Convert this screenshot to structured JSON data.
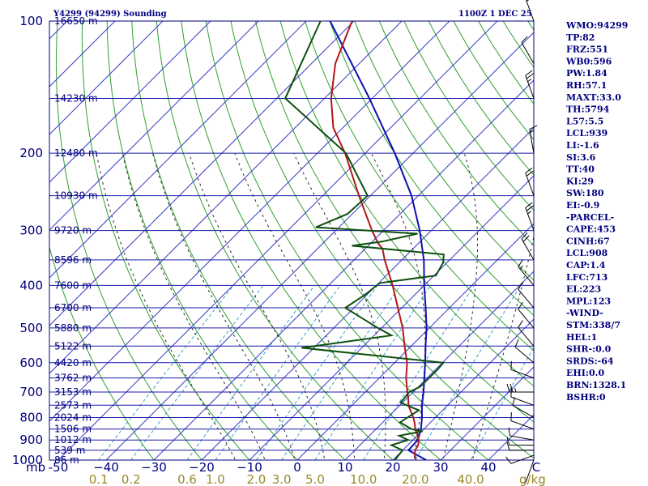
{
  "title": {
    "station": "Y4299 (94299) Sounding",
    "time": "1100Z  1 DEC 25"
  },
  "chart_data": {
    "type": "skew-t sounding",
    "pressure_levels": [
      100,
      150,
      200,
      250,
      300,
      350,
      400,
      450,
      500,
      550,
      600,
      650,
      700,
      750,
      800,
      850,
      900,
      950,
      1000
    ],
    "pressure_labels": [
      {
        "p": 100,
        "text": "100"
      },
      {
        "p": 200,
        "text": "200"
      },
      {
        "p": 300,
        "text": "300"
      },
      {
        "p": 400,
        "text": "400"
      },
      {
        "p": 500,
        "text": "500"
      },
      {
        "p": 600,
        "text": "600"
      },
      {
        "p": 700,
        "text": "700"
      },
      {
        "p": 800,
        "text": "800"
      },
      {
        "p": 900,
        "text": "900"
      },
      {
        "p": 1000,
        "text": "1000"
      }
    ],
    "pressure_unit": "mb",
    "height_labels": [
      {
        "p": 100,
        "text": "16650 m"
      },
      {
        "p": 150,
        "text": "14230 m"
      },
      {
        "p": 200,
        "text": "12480 m"
      },
      {
        "p": 250,
        "text": "10930 m"
      },
      {
        "p": 300,
        "text": "9720 m"
      },
      {
        "p": 350,
        "text": "8596 m"
      },
      {
        "p": 400,
        "text": "7600 m"
      },
      {
        "p": 450,
        "text": "6700 m"
      },
      {
        "p": 500,
        "text": "5880 m"
      },
      {
        "p": 550,
        "text": "5122 m"
      },
      {
        "p": 600,
        "text": "4420 m"
      },
      {
        "p": 650,
        "text": "3762 m"
      },
      {
        "p": 700,
        "text": "3153 m"
      },
      {
        "p": 750,
        "text": "2573 m"
      },
      {
        "p": 800,
        "text": "2024 m"
      },
      {
        "p": 850,
        "text": "1506 m"
      },
      {
        "p": 900,
        "text": "1012 m"
      },
      {
        "p": 950,
        "text": "539 m"
      },
      {
        "p": 1000,
        "text": "86 m"
      }
    ],
    "temperature_ticks": [
      {
        "t": -50,
        "text": "-50"
      },
      {
        "t": -40,
        "text": "−40"
      },
      {
        "t": -30,
        "text": "−30"
      },
      {
        "t": -20,
        "text": "−20"
      },
      {
        "t": -10,
        "text": "−10"
      },
      {
        "t": 0,
        "text": "0"
      },
      {
        "t": 10,
        "text": "10"
      },
      {
        "t": 20,
        "text": "20"
      },
      {
        "t": 30,
        "text": "30"
      },
      {
        "t": 40,
        "text": "40"
      },
      {
        "t": 50,
        "text": "C"
      }
    ],
    "mixing_ratio_labels": [
      {
        "t": 0.1,
        "text": "0.1"
      },
      {
        "t": 0.2,
        "text": "0.2"
      },
      {
        "t": 0.6,
        "text": "0.6"
      },
      {
        "t": 1.0,
        "text": "1.0"
      },
      {
        "t": 2.0,
        "text": "2.0"
      },
      {
        "t": 3.0,
        "text": "3.0"
      },
      {
        "t": 5.0,
        "text": "5.0"
      },
      {
        "t": 10.0,
        "text": "10.0"
      },
      {
        "t": 20.0,
        "text": "20.0"
      },
      {
        "t": 40.0,
        "text": "40.0"
      }
    ],
    "mixing_ratio_unit": "g/kg",
    "temperature_profile": [
      [
        1000,
        24.8
      ],
      [
        975,
        23.6
      ],
      [
        950,
        22.6
      ],
      [
        925,
        22.2
      ],
      [
        900,
        21.2
      ],
      [
        875,
        19.8
      ],
      [
        850,
        18.2
      ],
      [
        825,
        16.9
      ],
      [
        800,
        15.4
      ],
      [
        775,
        13.6
      ],
      [
        750,
        11.8
      ],
      [
        725,
        10.4
      ],
      [
        700,
        8.8
      ],
      [
        650,
        5.6
      ],
      [
        600,
        2.6
      ],
      [
        550,
        -1.4
      ],
      [
        500,
        -5.6
      ],
      [
        450,
        -10.8
      ],
      [
        400,
        -16.6
      ],
      [
        350,
        -23.6
      ],
      [
        330,
        -26.4
      ],
      [
        320,
        -28.6
      ],
      [
        300,
        -32.4
      ],
      [
        250,
        -42.4
      ],
      [
        200,
        -54.2
      ],
      [
        175,
        -62.0
      ],
      [
        150,
        -68.6
      ],
      [
        125,
        -75.0
      ],
      [
        100,
        -80.4
      ]
    ],
    "dewpoint_profile": [
      [
        1000,
        20.4
      ],
      [
        950,
        20.0
      ],
      [
        925,
        16.6
      ],
      [
        900,
        19.0
      ],
      [
        880,
        16.2
      ],
      [
        860,
        20.2
      ],
      [
        850,
        17.4
      ],
      [
        820,
        13.6
      ],
      [
        770,
        15.0
      ],
      [
        740,
        9.6
      ],
      [
        700,
        9.2
      ],
      [
        680,
        10.4
      ],
      [
        650,
        10.4
      ],
      [
        620,
        10.4
      ],
      [
        600,
        10.2
      ],
      [
        555,
        -22.6
      ],
      [
        520,
        -6.4
      ],
      [
        500,
        -10.8
      ],
      [
        450,
        -21.8
      ],
      [
        420,
        -20.4
      ],
      [
        395,
        -19.8
      ],
      [
        380,
        -9.6
      ],
      [
        355,
        -10.8
      ],
      [
        340,
        -12.4
      ],
      [
        325,
        -33.4
      ],
      [
        318,
        -28.0
      ],
      [
        305,
        -22.2
      ],
      [
        295,
        -44.8
      ],
      [
        275,
        -41.0
      ],
      [
        250,
        -40.6
      ],
      [
        200,
        -54.0
      ],
      [
        150,
        -78.2
      ],
      [
        100,
        -87.0
      ]
    ],
    "parcel_profile": [
      [
        1000,
        27.0
      ],
      [
        950,
        21.2
      ],
      [
        900,
        21.0
      ],
      [
        850,
        19.4
      ],
      [
        800,
        17.2
      ],
      [
        750,
        14.6
      ],
      [
        700,
        12.2
      ],
      [
        650,
        9.4
      ],
      [
        600,
        6.4
      ],
      [
        550,
        3.0
      ],
      [
        500,
        -0.6
      ],
      [
        450,
        -5.0
      ],
      [
        400,
        -10.0
      ],
      [
        350,
        -15.4
      ],
      [
        300,
        -22.4
      ],
      [
        250,
        -31.4
      ],
      [
        200,
        -43.8
      ],
      [
        150,
        -60.6
      ],
      [
        100,
        -85.0
      ]
    ],
    "wind_barbs": [
      {
        "p": 1000,
        "dir": 200,
        "spd": 5
      },
      {
        "p": 975,
        "dir": 250,
        "spd": 10
      },
      {
        "p": 950,
        "dir": 270,
        "spd": 10
      },
      {
        "p": 925,
        "dir": 270,
        "spd": 10
      },
      {
        "p": 900,
        "dir": 280,
        "spd": 10
      },
      {
        "p": 850,
        "dir": 290,
        "spd": 10
      },
      {
        "p": 800,
        "dir": 300,
        "spd": 10
      },
      {
        "p": 750,
        "dir": 290,
        "spd": 10
      },
      {
        "p": 700,
        "dir": 270,
        "spd": 25
      },
      {
        "p": 650,
        "dir": 290,
        "spd": 10
      },
      {
        "p": 600,
        "dir": 310,
        "spd": 10
      },
      {
        "p": 550,
        "dir": 320,
        "spd": 10
      },
      {
        "p": 500,
        "dir": 320,
        "spd": 10
      },
      {
        "p": 450,
        "dir": 320,
        "spd": 10
      },
      {
        "p": 400,
        "dir": 320,
        "spd": 15
      },
      {
        "p": 350,
        "dir": 330,
        "spd": 20
      },
      {
        "p": 300,
        "dir": 340,
        "spd": 25
      },
      {
        "p": 250,
        "dir": 340,
        "spd": 20
      },
      {
        "p": 200,
        "dir": 350,
        "spd": 15
      },
      {
        "p": 150,
        "dir": 340,
        "spd": 25
      },
      {
        "p": 125,
        "dir": 330,
        "spd": 10
      },
      {
        "p": 100,
        "dir": 340,
        "spd": 20
      }
    ],
    "colors": {
      "isobar": "#1a1aa8",
      "isotherm": "#3c3cc8",
      "dry_adiabat": "#2ea02e",
      "moist_adiabat": "#2a2a2a",
      "mixing_ratio": "#38a0c8",
      "temperature": "#b01818",
      "dewpoint": "#0e500e",
      "parcel": "#1010b0",
      "barb": "#000000"
    }
  },
  "indices": [
    "WMO:94299",
    "TP:82",
    "FRZ:551",
    "WB0:596",
    "PW:1.84",
    "RH:57.1",
    "MAXT:33.0",
    "TH:5794",
    "L57:5.5",
    "LCL:939",
    "LI:-1.6",
    "SI:3.6",
    "TT:40",
    "KI:29",
    "SW:180",
    "EI:-0.9",
    "-PARCEL-",
    "CAPE:453",
    "CINH:67",
    "LCL:908",
    "CAP:1.4",
    "LFC:713",
    "EL:223",
    "MPL:123",
    "-WIND-",
    "STM:338/7",
    "HEL:1",
    "SHR-:0.0",
    "SRDS:-64",
    "EHI:0.0",
    "BRN:1328.1",
    "BSHR:0"
  ]
}
